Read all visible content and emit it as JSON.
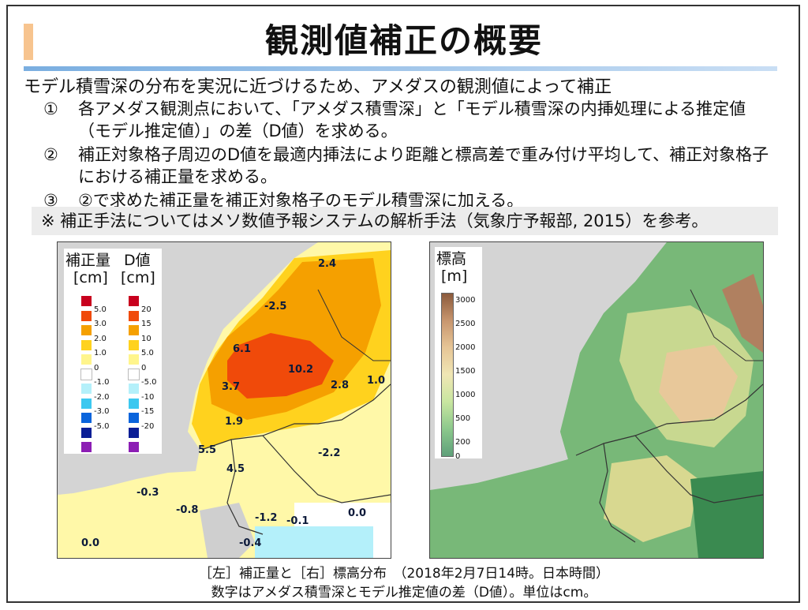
{
  "title": "観測値補正の概要",
  "intro": "モデル積雪深の分布を実況に近づけるため、アメダスの観測値によって補正",
  "steps": [
    {
      "num": "①",
      "text": "各アメダス観測点において、「アメダス積雪深」と「モデル積雪深の内挿処理による推定値（モデル推定値）」の差（D値）を求める。"
    },
    {
      "num": "②",
      "text": "補正対象格子周辺のD値を最適内挿法により距離と標高差で重み付け平均して、補正対象格子における補正量を求める。"
    },
    {
      "num": "③",
      "text": "②で求めた補正量を補正対象格子のモデル積雪深に加える。"
    }
  ],
  "note": "※ 補正手法についてはメソ数値予報システムの解析手法（気象庁予報部, 2015）を参考。",
  "left_map": {
    "legend_correction_title": "補正量",
    "legend_d_title": "D値",
    "legend_correction_unit": "[cm]",
    "legend_d_unit": "[cm]",
    "correction_ticks": [
      "5.0",
      "3.0",
      "2.0",
      "1.0",
      "0",
      "-1.0",
      "-2.0",
      "-3.0",
      "-5.0"
    ],
    "d_ticks": [
      "20",
      "15",
      "10",
      "5.0",
      "0",
      "-5.0",
      "-10",
      "-15",
      "-20"
    ],
    "colors": [
      "#c8001e",
      "#f04a0a",
      "#f5a000",
      "#ffd21e",
      "#fff58c",
      "#ffffff",
      "#b4f0fa",
      "#3cc8f0",
      "#0a64dc",
      "#0a1e96",
      "#8c1eb4"
    ],
    "values": [
      "2.4",
      "-2.5",
      "6.1",
      "10.2",
      "3.7",
      "2.8",
      "1.0",
      "1.9",
      "5.5",
      "-2.2",
      "4.5",
      "-0.3",
      "-0.8",
      "-1.2",
      "-0.1",
      "0.0",
      "-0.4",
      "0.0"
    ]
  },
  "right_map": {
    "legend_title": "標高",
    "legend_unit": "[m]",
    "ticks": [
      "3000",
      "2500",
      "2000",
      "1500",
      "1000",
      "500",
      "200",
      "0"
    ]
  },
  "caption": {
    "line1": "［左］補正量と［右］標高分布　（2018年2月7日14時。日本時間）",
    "line2": "数字はアメダス積雪深とモデル推定値の差（D値）。単位はcm。"
  }
}
